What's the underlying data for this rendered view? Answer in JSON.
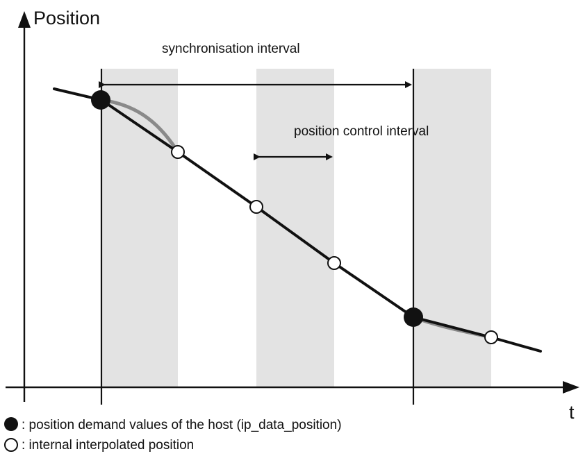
{
  "axes": {
    "y_label": "Position",
    "x_label": "t"
  },
  "annotations": {
    "sync_interval": "synchronisation interval",
    "position_control_interval": "position control interval"
  },
  "legend": {
    "filled": ": position demand values of the host (ip_data_position)",
    "hollow": ": internal interpolated position"
  },
  "colors": {
    "band": "#e3e3e3",
    "line": "#111111",
    "gray_curve": "#8a8a8a"
  }
}
